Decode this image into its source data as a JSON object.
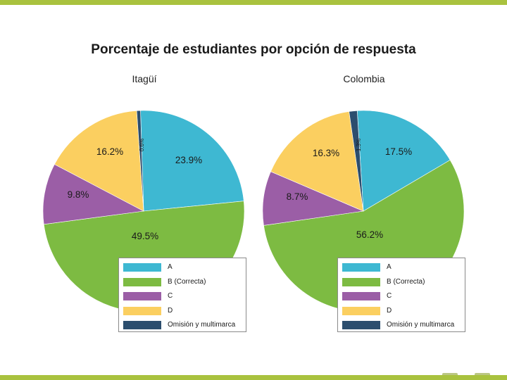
{
  "page": {
    "title": "Porcentaje de estudiantes por opción de respuesta"
  },
  "colors": {
    "A": "#3eb8d2",
    "B": "#7dbb42",
    "C": "#9b5ea6",
    "D": "#fbcf60",
    "O": "#2c4e6e",
    "frame": "#a9c23f"
  },
  "chart_data": [
    {
      "type": "pie",
      "title": "Itagüí",
      "slices": [
        {
          "key": "A",
          "label": "A",
          "value": 23.9,
          "text": "23.9%"
        },
        {
          "key": "B",
          "label": "B (Correcta)",
          "value": 49.5,
          "text": "49.5%"
        },
        {
          "key": "C",
          "label": "C",
          "value": 9.8,
          "text": "9.8%"
        },
        {
          "key": "D",
          "label": "D",
          "value": 16.2,
          "text": "16.2%"
        },
        {
          "key": "O",
          "label": "Omisión y multimarca",
          "value": 0.6,
          "text": "0.6%"
        }
      ],
      "legend": [
        "A",
        "B (Correcta)",
        "C",
        "D",
        "Omisión y multimarca"
      ]
    },
    {
      "type": "pie",
      "title": "Colombia",
      "slices": [
        {
          "key": "A",
          "label": "A",
          "value": 17.5,
          "text": "17.5%"
        },
        {
          "key": "B",
          "label": "B (Correcta)",
          "value": 56.2,
          "text": "56.2%"
        },
        {
          "key": "C",
          "label": "C",
          "value": 8.7,
          "text": "8.7%"
        },
        {
          "key": "D",
          "label": "D",
          "value": 16.3,
          "text": "16.3%"
        },
        {
          "key": "O",
          "label": "Omisión y multimarca",
          "value": 1.3,
          "text": "1.3%"
        }
      ],
      "legend": [
        "A",
        "B (Correcta)",
        "C",
        "D",
        "Omisión y multimarca"
      ]
    }
  ]
}
